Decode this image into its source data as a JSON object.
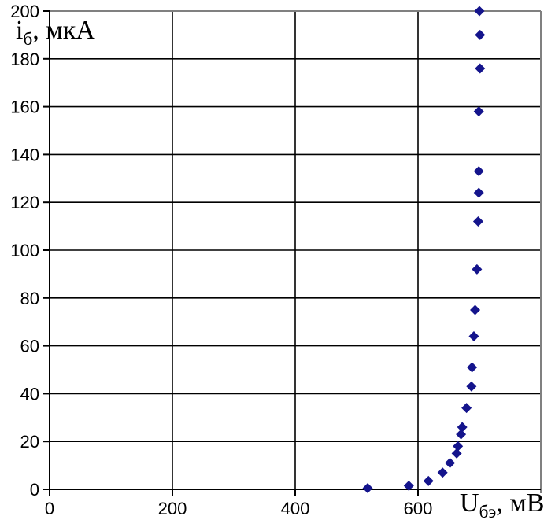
{
  "chart_data": {
    "type": "scatter",
    "title": "",
    "xlabel": "Uбэ, мВ",
    "ylabel": "iб, мкА",
    "x_axis": {
      "label_main": "U",
      "label_sub": "бэ",
      "label_rest": ", мВ",
      "min": 0,
      "max": 800,
      "ticks": [
        0,
        200,
        400,
        600
      ]
    },
    "y_axis": {
      "label_main": "i",
      "label_sub": "б",
      "label_rest": ", мкА",
      "min": 0,
      "max": 200,
      "ticks": [
        0,
        20,
        40,
        60,
        80,
        100,
        120,
        140,
        160,
        180,
        200
      ]
    },
    "grid": {
      "show": true,
      "color": "#000000"
    },
    "legend": {
      "show": false
    },
    "plot_border_color": "#808080",
    "axis_color": "#000000",
    "text_color": "#000000",
    "background": "#ffffff",
    "series": [
      {
        "marker": "diamond",
        "color": "#14148C",
        "points": [
          [
            518,
            0.5
          ],
          [
            585,
            1.5
          ],
          [
            617,
            3.5
          ],
          [
            640,
            7
          ],
          [
            652,
            11
          ],
          [
            663,
            15
          ],
          [
            665,
            18
          ],
          [
            670,
            23
          ],
          [
            672,
            26
          ],
          [
            679,
            34
          ],
          [
            687,
            43
          ],
          [
            688,
            51
          ],
          [
            691,
            64
          ],
          [
            693,
            75
          ],
          [
            696,
            92
          ],
          [
            698,
            112
          ],
          [
            699,
            124
          ],
          [
            699,
            133
          ],
          [
            699,
            158
          ],
          [
            701,
            176
          ],
          [
            701,
            190
          ],
          [
            700,
            200
          ]
        ]
      }
    ]
  }
}
